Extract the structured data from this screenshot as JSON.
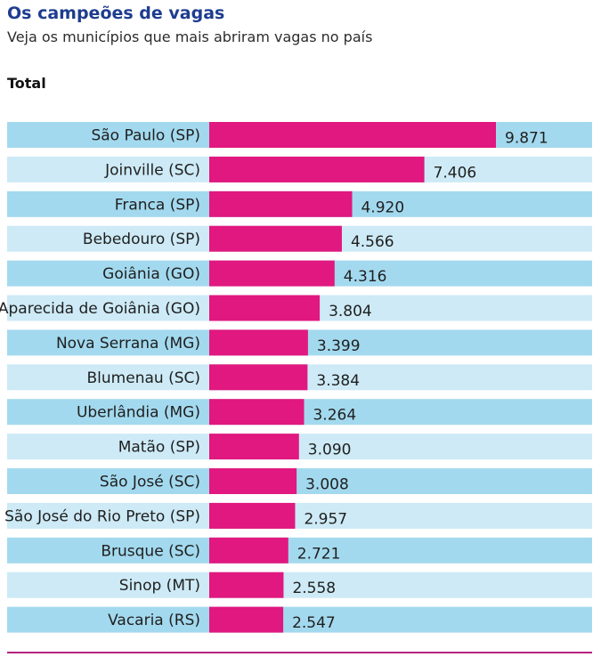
{
  "title": "Os campeões de vagas",
  "subtitle": "Veja os municípios que mais abriram vagas no país",
  "section_label": "Total",
  "colors": {
    "title": "#1e3d8f",
    "bar": "#e0187f",
    "row_dark": "#a3d9ee",
    "row_light": "#cdeaf6",
    "rule": "#b5237e"
  },
  "chart_data": {
    "type": "bar",
    "orientation": "horizontal",
    "title": "Os campeões de vagas",
    "subtitle": "Veja os municípios que mais abriram vagas no país",
    "categories": [
      "São Paulo (SP)",
      "Joinville (SC)",
      "Franca (SP)",
      "Bebedouro (SP)",
      "Goiânia (GO)",
      "Aparecida de Goiânia (GO)",
      "Nova Serrana (MG)",
      "Blumenau (SC)",
      "Uberlândia (MG)",
      "Matão (SP)",
      "São José (SC)",
      "São José do Rio Preto (SP)",
      "Brusque (SC)",
      "Sinop (MT)",
      "Vacaria (RS)"
    ],
    "values": [
      9871,
      7406,
      4920,
      4566,
      4316,
      3804,
      3399,
      3384,
      3264,
      3090,
      3008,
      2957,
      2721,
      2558,
      2547
    ],
    "value_labels": [
      "9.871",
      "7.406",
      "4.920",
      "4.566",
      "4.316",
      "3.804",
      "3.399",
      "3.384",
      "3.264",
      "3.090",
      "3.008",
      "2.957",
      "2.721",
      "2.558",
      "2.547"
    ],
    "xlim": [
      0,
      9871
    ],
    "grid": false,
    "legend": "none"
  }
}
